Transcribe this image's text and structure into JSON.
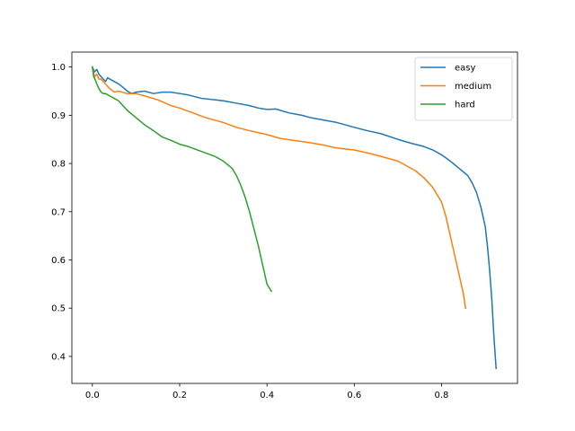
{
  "chart_data": {
    "type": "line",
    "title": "",
    "xlabel": "",
    "ylabel": "",
    "xlim": [
      -0.047,
      0.974
    ],
    "ylim": [
      0.344,
      1.031
    ],
    "x_ticks": [
      0.0,
      0.2,
      0.4,
      0.6,
      0.8
    ],
    "x_tick_labels": [
      "0.0",
      "0.2",
      "0.4",
      "0.6",
      "0.8"
    ],
    "y_ticks": [
      0.4,
      0.5,
      0.6,
      0.7,
      0.8,
      0.9,
      1.0
    ],
    "y_tick_labels": [
      "0.4",
      "0.5",
      "0.6",
      "0.7",
      "0.8",
      "0.9",
      "1.0"
    ],
    "grid": false,
    "legend_position": "top-right",
    "series": [
      {
        "name": "easy",
        "color": "#1f77b4",
        "x": [
          0.0,
          0.005,
          0.01,
          0.015,
          0.02,
          0.025,
          0.03,
          0.035,
          0.04,
          0.05,
          0.06,
          0.07,
          0.08,
          0.09,
          0.1,
          0.12,
          0.14,
          0.16,
          0.18,
          0.2,
          0.22,
          0.25,
          0.28,
          0.3,
          0.33,
          0.36,
          0.38,
          0.4,
          0.42,
          0.45,
          0.48,
          0.5,
          0.53,
          0.56,
          0.6,
          0.63,
          0.66,
          0.7,
          0.73,
          0.76,
          0.78,
          0.8,
          0.82,
          0.84,
          0.86,
          0.87,
          0.88,
          0.89,
          0.9,
          0.905,
          0.91,
          0.915,
          0.92,
          0.925
        ],
        "y": [
          1.0,
          0.99,
          0.995,
          0.985,
          0.98,
          0.975,
          0.97,
          0.978,
          0.975,
          0.97,
          0.965,
          0.958,
          0.95,
          0.945,
          0.948,
          0.95,
          0.945,
          0.948,
          0.948,
          0.945,
          0.942,
          0.935,
          0.932,
          0.93,
          0.925,
          0.92,
          0.915,
          0.912,
          0.913,
          0.905,
          0.9,
          0.895,
          0.89,
          0.885,
          0.875,
          0.868,
          0.862,
          0.85,
          0.842,
          0.835,
          0.828,
          0.818,
          0.805,
          0.79,
          0.775,
          0.76,
          0.74,
          0.71,
          0.67,
          0.63,
          0.58,
          0.52,
          0.44,
          0.375
        ]
      },
      {
        "name": "medium",
        "color": "#ff7f0e",
        "x": [
          0.0,
          0.005,
          0.01,
          0.015,
          0.02,
          0.03,
          0.04,
          0.05,
          0.06,
          0.08,
          0.1,
          0.12,
          0.15,
          0.18,
          0.2,
          0.23,
          0.26,
          0.3,
          0.33,
          0.36,
          0.4,
          0.43,
          0.46,
          0.5,
          0.53,
          0.56,
          0.6,
          0.63,
          0.66,
          0.7,
          0.72,
          0.74,
          0.76,
          0.78,
          0.8,
          0.81,
          0.82,
          0.83,
          0.84,
          0.85,
          0.855
        ],
        "y": [
          1.0,
          0.98,
          0.985,
          0.975,
          0.975,
          0.965,
          0.955,
          0.948,
          0.95,
          0.945,
          0.945,
          0.94,
          0.932,
          0.92,
          0.915,
          0.905,
          0.895,
          0.885,
          0.875,
          0.868,
          0.86,
          0.852,
          0.848,
          0.843,
          0.838,
          0.832,
          0.828,
          0.822,
          0.815,
          0.805,
          0.795,
          0.785,
          0.77,
          0.75,
          0.72,
          0.69,
          0.65,
          0.61,
          0.57,
          0.53,
          0.5
        ]
      },
      {
        "name": "hard",
        "color": "#2ca02c",
        "x": [
          0.0,
          0.003,
          0.006,
          0.01,
          0.015,
          0.02,
          0.025,
          0.03,
          0.04,
          0.05,
          0.06,
          0.07,
          0.08,
          0.1,
          0.12,
          0.14,
          0.16,
          0.18,
          0.2,
          0.22,
          0.25,
          0.28,
          0.3,
          0.32,
          0.33,
          0.34,
          0.35,
          0.36,
          0.37,
          0.38,
          0.39,
          0.4,
          0.41
        ],
        "y": [
          1.0,
          0.98,
          0.975,
          0.965,
          0.955,
          0.948,
          0.945,
          0.945,
          0.94,
          0.935,
          0.93,
          0.92,
          0.91,
          0.895,
          0.88,
          0.868,
          0.855,
          0.848,
          0.84,
          0.835,
          0.825,
          0.815,
          0.805,
          0.79,
          0.775,
          0.755,
          0.73,
          0.7,
          0.665,
          0.63,
          0.59,
          0.55,
          0.535
        ]
      }
    ]
  }
}
